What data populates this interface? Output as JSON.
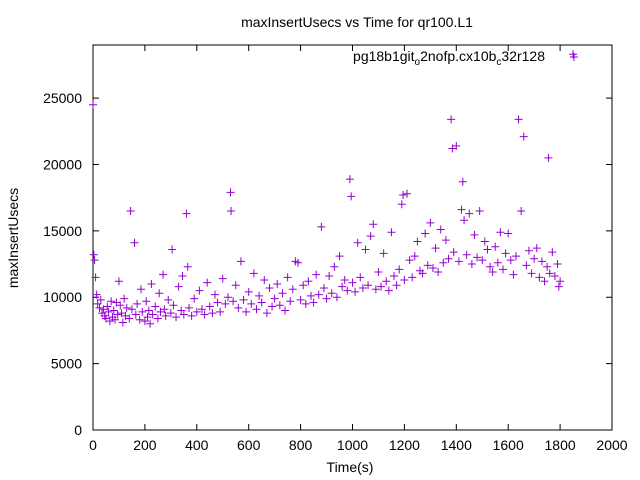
{
  "chart_data": {
    "type": "scatter",
    "title": "maxInsertUsecs vs Time for qr100.L1",
    "xlabel": "Time(s)",
    "ylabel": "maxInsertUsecs",
    "xlim": [
      0,
      2000
    ],
    "ylim": [
      0,
      29000
    ],
    "x_ticks": [
      0,
      200,
      400,
      600,
      800,
      1000,
      1200,
      1400,
      1600,
      1800,
      2000
    ],
    "y_ticks": [
      0,
      5000,
      10000,
      15000,
      20000,
      25000
    ],
    "x_tick_labels": [
      "0",
      "200",
      "400",
      "600",
      "800",
      "1000",
      "1200",
      "1400",
      "1600",
      "1800",
      "2000"
    ],
    "y_tick_labels": [
      "0",
      "5000",
      "10000",
      "15000",
      "20000",
      "25000"
    ],
    "grid": false,
    "legend_position": "top-right",
    "marker": "+",
    "series": [
      {
        "legend": {
          "base1": "pg18b1git",
          "sub1": "o",
          "mid": "2nofp.cx10b",
          "sub2": "c",
          "tail": "32r128"
        },
        "color": "#9400d3",
        "points": [
          [
            0,
            24500
          ],
          [
            3,
            13200
          ],
          [
            6,
            12800
          ],
          [
            10,
            11500
          ],
          [
            14,
            10200
          ],
          [
            18,
            9500
          ],
          [
            25,
            9200
          ],
          [
            30,
            9800
          ],
          [
            35,
            8800
          ],
          [
            40,
            9100
          ],
          [
            45,
            8600
          ],
          [
            50,
            8400
          ],
          [
            55,
            9300
          ],
          [
            60,
            8900
          ],
          [
            65,
            8200
          ],
          [
            70,
            9700
          ],
          [
            75,
            8500
          ],
          [
            80,
            9000
          ],
          [
            85,
            8300
          ],
          [
            90,
            9600
          ],
          [
            95,
            8700
          ],
          [
            100,
            11200
          ],
          [
            105,
            9400
          ],
          [
            110,
            8800
          ],
          [
            115,
            8100
          ],
          [
            120,
            9900
          ],
          [
            125,
            8600
          ],
          [
            130,
            9200
          ],
          [
            140,
            8400
          ],
          [
            145,
            16500
          ],
          [
            150,
            9100
          ],
          [
            160,
            14100
          ],
          [
            165,
            8700
          ],
          [
            170,
            9500
          ],
          [
            180,
            8300
          ],
          [
            185,
            10600
          ],
          [
            190,
            8900
          ],
          [
            200,
            8200
          ],
          [
            205,
            9700
          ],
          [
            210,
            8500
          ],
          [
            215,
            9000
          ],
          [
            220,
            8000
          ],
          [
            225,
            11000
          ],
          [
            230,
            8700
          ],
          [
            240,
            9300
          ],
          [
            250,
            8400
          ],
          [
            255,
            10300
          ],
          [
            260,
            8900
          ],
          [
            270,
            11700
          ],
          [
            275,
            9100
          ],
          [
            280,
            8600
          ],
          [
            290,
            9800
          ],
          [
            300,
            8800
          ],
          [
            305,
            13600
          ],
          [
            310,
            9400
          ],
          [
            320,
            8500
          ],
          [
            330,
            10800
          ],
          [
            340,
            9000
          ],
          [
            345,
            11600
          ],
          [
            350,
            8700
          ],
          [
            360,
            16300
          ],
          [
            365,
            12300
          ],
          [
            370,
            9200
          ],
          [
            380,
            8600
          ],
          [
            390,
            9900
          ],
          [
            400,
            8900
          ],
          [
            410,
            10500
          ],
          [
            420,
            9100
          ],
          [
            430,
            8700
          ],
          [
            440,
            11100
          ],
          [
            450,
            9300
          ],
          [
            460,
            8800
          ],
          [
            470,
            10200
          ],
          [
            480,
            9600
          ],
          [
            490,
            8900
          ],
          [
            500,
            11400
          ],
          [
            510,
            9500
          ],
          [
            520,
            10000
          ],
          [
            530,
            17900
          ],
          [
            532,
            16500
          ],
          [
            540,
            9700
          ],
          [
            550,
            10900
          ],
          [
            560,
            9200
          ],
          [
            570,
            12700
          ],
          [
            580,
            9800
          ],
          [
            590,
            8900
          ],
          [
            600,
            10400
          ],
          [
            610,
            9500
          ],
          [
            620,
            11800
          ],
          [
            630,
            9100
          ],
          [
            640,
            10100
          ],
          [
            650,
            9600
          ],
          [
            660,
            11300
          ],
          [
            670,
            8800
          ],
          [
            680,
            10700
          ],
          [
            690,
            9300
          ],
          [
            700,
            9900
          ],
          [
            710,
            11000
          ],
          [
            720,
            9400
          ],
          [
            730,
            10300
          ],
          [
            740,
            9000
          ],
          [
            750,
            11500
          ],
          [
            760,
            9700
          ],
          [
            770,
            10600
          ],
          [
            780,
            12700
          ],
          [
            790,
            12600
          ],
          [
            800,
            9800
          ],
          [
            810,
            10900
          ],
          [
            820,
            9500
          ],
          [
            830,
            11200
          ],
          [
            840,
            10100
          ],
          [
            850,
            9600
          ],
          [
            860,
            11700
          ],
          [
            870,
            10200
          ],
          [
            880,
            15300
          ],
          [
            890,
            10700
          ],
          [
            900,
            9900
          ],
          [
            910,
            11600
          ],
          [
            920,
            10300
          ],
          [
            930,
            12300
          ],
          [
            940,
            10000
          ],
          [
            950,
            13100
          ],
          [
            960,
            10800
          ],
          [
            970,
            11300
          ],
          [
            980,
            10500
          ],
          [
            990,
            18900
          ],
          [
            995,
            17600
          ],
          [
            1000,
            11100
          ],
          [
            1010,
            10400
          ],
          [
            1020,
            14100
          ],
          [
            1030,
            11500
          ],
          [
            1040,
            10700
          ],
          [
            1050,
            13600
          ],
          [
            1060,
            10900
          ],
          [
            1070,
            14600
          ],
          [
            1080,
            15500
          ],
          [
            1090,
            10600
          ],
          [
            1100,
            11900
          ],
          [
            1110,
            10800
          ],
          [
            1120,
            13300
          ],
          [
            1130,
            11200
          ],
          [
            1140,
            10500
          ],
          [
            1150,
            14900
          ],
          [
            1160,
            11600
          ],
          [
            1170,
            10900
          ],
          [
            1180,
            12100
          ],
          [
            1190,
            17000
          ],
          [
            1195,
            17700
          ],
          [
            1200,
            11300
          ],
          [
            1210,
            17800
          ],
          [
            1220,
            12800
          ],
          [
            1230,
            11500
          ],
          [
            1240,
            13100
          ],
          [
            1250,
            14200
          ],
          [
            1260,
            12000
          ],
          [
            1270,
            11800
          ],
          [
            1280,
            14800
          ],
          [
            1290,
            12400
          ],
          [
            1300,
            15600
          ],
          [
            1310,
            12200
          ],
          [
            1320,
            13700
          ],
          [
            1330,
            11900
          ],
          [
            1340,
            15100
          ],
          [
            1350,
            12600
          ],
          [
            1360,
            14300
          ],
          [
            1370,
            12900
          ],
          [
            1380,
            23400
          ],
          [
            1385,
            21200
          ],
          [
            1390,
            13400
          ],
          [
            1400,
            21400
          ],
          [
            1410,
            12700
          ],
          [
            1420,
            16600
          ],
          [
            1425,
            18700
          ],
          [
            1430,
            15800
          ],
          [
            1440,
            13200
          ],
          [
            1450,
            16300
          ],
          [
            1460,
            12500
          ],
          [
            1470,
            14700
          ],
          [
            1480,
            13000
          ],
          [
            1490,
            16500
          ],
          [
            1500,
            12800
          ],
          [
            1510,
            14200
          ],
          [
            1520,
            13600
          ],
          [
            1530,
            12300
          ],
          [
            1540,
            11900
          ],
          [
            1550,
            13800
          ],
          [
            1560,
            12600
          ],
          [
            1570,
            14900
          ],
          [
            1580,
            12100
          ],
          [
            1590,
            13300
          ],
          [
            1600,
            14800
          ],
          [
            1610,
            12800
          ],
          [
            1620,
            11700
          ],
          [
            1630,
            13100
          ],
          [
            1640,
            23400
          ],
          [
            1650,
            16500
          ],
          [
            1660,
            22100
          ],
          [
            1670,
            12400
          ],
          [
            1680,
            13500
          ],
          [
            1690,
            11800
          ],
          [
            1700,
            12900
          ],
          [
            1710,
            13700
          ],
          [
            1720,
            11500
          ],
          [
            1730,
            12700
          ],
          [
            1740,
            11200
          ],
          [
            1750,
            12300
          ],
          [
            1755,
            20500
          ],
          [
            1760,
            11800
          ],
          [
            1770,
            13400
          ],
          [
            1780,
            11600
          ],
          [
            1790,
            12500
          ],
          [
            1795,
            10800
          ],
          [
            1800,
            11200
          ],
          [
            1850,
            28300
          ]
        ]
      }
    ]
  }
}
